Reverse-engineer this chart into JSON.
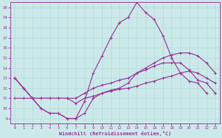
{
  "xlabel": "Windchill (Refroidissement éolien,°C)",
  "background_color": "#cce9e9",
  "line_color": "#993399",
  "grid_color": "#b0d8d8",
  "xlim": [
    -0.5,
    23.5
  ],
  "ylim": [
    8.5,
    20.5
  ],
  "yticks": [
    9,
    10,
    11,
    12,
    13,
    14,
    15,
    16,
    17,
    18,
    19,
    20
  ],
  "xticks": [
    0,
    1,
    2,
    3,
    4,
    5,
    6,
    7,
    8,
    9,
    10,
    11,
    12,
    13,
    14,
    15,
    16,
    17,
    18,
    19,
    20,
    21,
    22,
    23
  ],
  "series": {
    "peak_x": [
      0,
      1,
      2,
      3,
      4,
      5,
      6,
      7,
      8,
      9,
      10,
      11,
      12,
      13,
      14,
      15,
      16,
      17,
      18,
      19,
      20,
      21,
      22,
      23
    ],
    "peak_y": [
      13,
      12,
      11,
      10,
      9.5,
      9.5,
      9,
      9,
      10.7,
      13.5,
      15.2,
      17,
      18.5,
      19,
      20.5,
      19.5,
      18.8,
      17.2,
      15,
      13.5,
      12.7,
      12.5,
      11.5,
      null
    ],
    "jagged_x": [
      0,
      1,
      2,
      3,
      4,
      5,
      6,
      7,
      8,
      9,
      10,
      11,
      12,
      13,
      14,
      15,
      16,
      17,
      18,
      19,
      20,
      21,
      22,
      23
    ],
    "jagged_y": [
      13,
      12,
      11,
      10,
      9.5,
      9.5,
      9,
      9,
      9.5,
      11,
      11.5,
      11.8,
      12,
      12.5,
      13.5,
      13.8,
      14.2,
      14.5,
      14.5,
      14.5,
      13.8,
      12.8,
      12.5,
      11.5
    ],
    "upper_x": [
      0,
      1,
      2,
      3,
      4,
      5,
      6,
      7,
      8,
      9,
      10,
      11,
      12,
      13,
      14,
      15,
      16,
      17,
      18,
      19,
      20,
      21,
      22,
      23
    ],
    "upper_y": [
      13,
      12,
      11,
      11,
      11,
      11,
      11,
      11,
      11.5,
      12,
      12.3,
      12.5,
      12.8,
      13,
      13.5,
      14,
      14.5,
      15,
      15.3,
      15.5,
      15.5,
      15.2,
      14.5,
      13.5
    ],
    "lower_x": [
      0,
      1,
      2,
      3,
      4,
      5,
      6,
      7,
      8,
      9,
      10,
      11,
      12,
      13,
      14,
      15,
      16,
      17,
      18,
      19,
      20,
      21,
      22,
      23
    ],
    "lower_y": [
      11,
      11,
      11,
      11,
      11,
      11,
      11,
      10.5,
      11,
      11.2,
      11.5,
      11.7,
      11.9,
      12,
      12.2,
      12.5,
      12.7,
      13,
      13.2,
      13.5,
      13.7,
      13.5,
      13,
      12.5
    ]
  }
}
